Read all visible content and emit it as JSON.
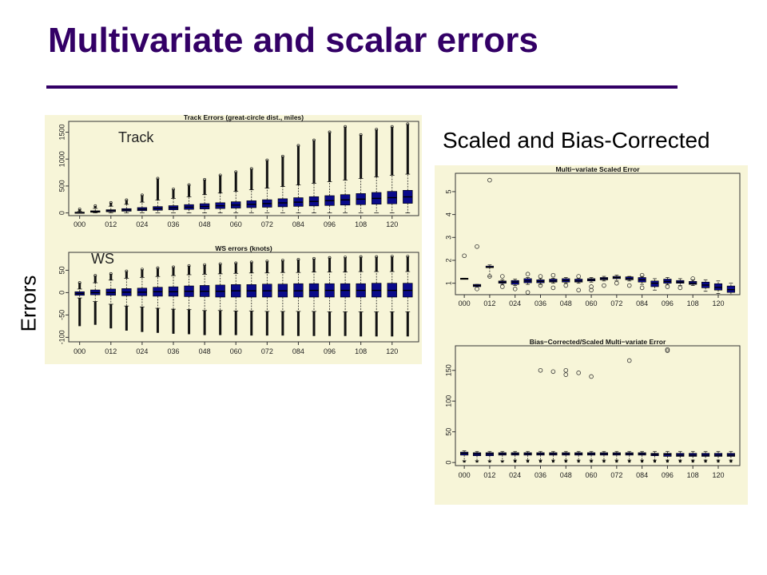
{
  "slide": {
    "title": "Multivariate and scalar errors",
    "side_label": "Errors",
    "right_caption": "Scaled and Bias-Corrected"
  },
  "colors": {
    "title": "#330066",
    "box_fill": "#0a0a8a",
    "panel_bg": "#f7f5d8"
  },
  "chart_data": [
    {
      "type": "box",
      "title": "Track Errors (great-circle dist., miles)",
      "overlay_label": "Track",
      "xtick_labels": [
        "000",
        "012",
        "024",
        "036",
        "048",
        "060",
        "072",
        "084",
        "096",
        "108",
        "120"
      ],
      "yticks": [
        0,
        500,
        1000,
        1500
      ],
      "ylim": [
        -50,
        1700
      ],
      "boxes": [
        {
          "q1": 2,
          "med": 8,
          "q3": 14,
          "wlo": 0,
          "whi": 30,
          "omax": 70
        },
        {
          "q1": 12,
          "med": 24,
          "q3": 40,
          "wlo": 0,
          "whi": 85,
          "omax": 130
        },
        {
          "q1": 22,
          "med": 40,
          "q3": 60,
          "wlo": 0,
          "whi": 125,
          "omax": 190
        },
        {
          "q1": 32,
          "med": 55,
          "q3": 80,
          "wlo": 0,
          "whi": 160,
          "omax": 240
        },
        {
          "q1": 42,
          "med": 68,
          "q3": 100,
          "wlo": 0,
          "whi": 200,
          "omax": 330
        },
        {
          "q1": 50,
          "med": 82,
          "q3": 118,
          "wlo": 0,
          "whi": 240,
          "omax": 640
        },
        {
          "q1": 58,
          "med": 95,
          "q3": 135,
          "wlo": 0,
          "whi": 270,
          "omax": 440
        },
        {
          "q1": 66,
          "med": 108,
          "q3": 155,
          "wlo": 0,
          "whi": 300,
          "omax": 520
        },
        {
          "q1": 74,
          "med": 120,
          "q3": 172,
          "wlo": 0,
          "whi": 340,
          "omax": 620
        },
        {
          "q1": 82,
          "med": 133,
          "q3": 190,
          "wlo": 0,
          "whi": 370,
          "omax": 700
        },
        {
          "q1": 90,
          "med": 146,
          "q3": 208,
          "wlo": 0,
          "whi": 400,
          "omax": 760
        },
        {
          "q1": 98,
          "med": 160,
          "q3": 226,
          "wlo": 0,
          "whi": 430,
          "omax": 820
        },
        {
          "q1": 106,
          "med": 173,
          "q3": 245,
          "wlo": 0,
          "whi": 460,
          "omax": 980
        },
        {
          "q1": 114,
          "med": 187,
          "q3": 264,
          "wlo": 0,
          "whi": 490,
          "omax": 1050
        },
        {
          "q1": 122,
          "med": 200,
          "q3": 283,
          "wlo": 0,
          "whi": 520,
          "omax": 1250
        },
        {
          "q1": 130,
          "med": 214,
          "q3": 302,
          "wlo": 0,
          "whi": 550,
          "omax": 1350
        },
        {
          "q1": 138,
          "med": 228,
          "q3": 321,
          "wlo": 0,
          "whi": 580,
          "omax": 1500
        },
        {
          "q1": 146,
          "med": 242,
          "q3": 340,
          "wlo": 0,
          "whi": 610,
          "omax": 1600
        },
        {
          "q1": 154,
          "med": 256,
          "q3": 360,
          "wlo": 0,
          "whi": 640,
          "omax": 1450
        },
        {
          "q1": 162,
          "med": 270,
          "q3": 380,
          "wlo": 0,
          "whi": 670,
          "omax": 1550
        },
        {
          "q1": 170,
          "med": 284,
          "q3": 400,
          "wlo": 0,
          "whi": 700,
          "omax": 1600
        },
        {
          "q1": 178,
          "med": 298,
          "q3": 420,
          "wlo": 0,
          "whi": 720,
          "omax": 1650
        }
      ]
    },
    {
      "type": "box",
      "title": "WS errors (knots)",
      "overlay_label": "WS",
      "xtick_labels": [
        "000",
        "012",
        "024",
        "036",
        "048",
        "060",
        "072",
        "084",
        "096",
        "108",
        "120"
      ],
      "yticks": [
        -100,
        -50,
        0,
        50
      ],
      "ylim": [
        -110,
        90
      ],
      "boxes": [
        {
          "q1": -6,
          "med": -2,
          "q3": 2,
          "wlo": -12,
          "whi": 8,
          "omin": -75,
          "omax": 22
        },
        {
          "q1": -5,
          "med": 0,
          "q3": 6,
          "wlo": -20,
          "whi": 22,
          "omin": -72,
          "omax": 38
        },
        {
          "q1": -6,
          "med": 0,
          "q3": 8,
          "wlo": -26,
          "whi": 28,
          "omin": -80,
          "omax": 42
        },
        {
          "q1": -7,
          "med": 1,
          "q3": 9,
          "wlo": -30,
          "whi": 32,
          "omin": -85,
          "omax": 48
        },
        {
          "q1": -7,
          "med": 1,
          "q3": 10,
          "wlo": -32,
          "whi": 34,
          "omin": -88,
          "omax": 52
        },
        {
          "q1": -8,
          "med": 2,
          "q3": 12,
          "wlo": -35,
          "whi": 36,
          "omin": -90,
          "omax": 55
        },
        {
          "q1": -8,
          "med": 2,
          "q3": 13,
          "wlo": -37,
          "whi": 38,
          "omin": -92,
          "omax": 57
        },
        {
          "q1": -9,
          "med": 3,
          "q3": 15,
          "wlo": -38,
          "whi": 40,
          "omin": -93,
          "omax": 60
        },
        {
          "q1": -9,
          "med": 3,
          "q3": 16,
          "wlo": -40,
          "whi": 41,
          "omin": -95,
          "omax": 62
        },
        {
          "q1": -10,
          "med": 3,
          "q3": 17,
          "wlo": -40,
          "whi": 42,
          "omin": -95,
          "omax": 64
        },
        {
          "q1": -10,
          "med": 4,
          "q3": 18,
          "wlo": -41,
          "whi": 43,
          "omin": -95,
          "omax": 66
        },
        {
          "q1": -10,
          "med": 4,
          "q3": 18,
          "wlo": -41,
          "whi": 44,
          "omin": -96,
          "omax": 68
        },
        {
          "q1": -10,
          "med": 4,
          "q3": 19,
          "wlo": -42,
          "whi": 44,
          "omin": -96,
          "omax": 70
        },
        {
          "q1": -10,
          "med": 4,
          "q3": 19,
          "wlo": -42,
          "whi": 45,
          "omin": -96,
          "omax": 72
        },
        {
          "q1": -10,
          "med": 4,
          "q3": 20,
          "wlo": -42,
          "whi": 45,
          "omin": -97,
          "omax": 74
        },
        {
          "q1": -10,
          "med": 5,
          "q3": 20,
          "wlo": -42,
          "whi": 46,
          "omin": -97,
          "omax": 76
        },
        {
          "q1": -10,
          "med": 5,
          "q3": 20,
          "wlo": -43,
          "whi": 46,
          "omin": -97,
          "omax": 78
        },
        {
          "q1": -10,
          "med": 5,
          "q3": 20,
          "wlo": -43,
          "whi": 46,
          "omin": -97,
          "omax": 79
        },
        {
          "q1": -10,
          "med": 5,
          "q3": 20,
          "wlo": -43,
          "whi": 47,
          "omin": -98,
          "omax": 80
        },
        {
          "q1": -10,
          "med": 5,
          "q3": 21,
          "wlo": -43,
          "whi": 47,
          "omin": -98,
          "omax": 80
        },
        {
          "q1": -10,
          "med": 5,
          "q3": 21,
          "wlo": -43,
          "whi": 47,
          "omin": -98,
          "omax": 81
        },
        {
          "q1": -10,
          "med": 5,
          "q3": 21,
          "wlo": -43,
          "whi": 47,
          "omin": -98,
          "omax": 81
        }
      ]
    },
    {
      "type": "box",
      "title": "Multi−variate Scaled Error",
      "xtick_labels": [
        "000",
        "012",
        "024",
        "036",
        "048",
        "060",
        "072",
        "084",
        "096",
        "108",
        "120"
      ],
      "yticks": [
        1,
        2,
        3,
        4,
        5
      ],
      "ylim": [
        0.5,
        5.8
      ],
      "boxes": [
        {
          "q1": 1.18,
          "med": 1.2,
          "q3": 1.22,
          "wlo": 1.18,
          "whi": 1.22,
          "outliers": [
            2.2
          ]
        },
        {
          "q1": 0.85,
          "med": 0.9,
          "q3": 0.95,
          "wlo": 0.85,
          "whi": 0.95,
          "outliers": [
            2.6,
            0.75
          ]
        },
        {
          "q1": 1.68,
          "med": 1.7,
          "q3": 1.75,
          "wlo": 1.3,
          "whi": 1.8,
          "outliers": [
            5.5,
            1.3
          ]
        },
        {
          "q1": 1.0,
          "med": 1.05,
          "q3": 1.1,
          "wlo": 0.95,
          "whi": 1.15,
          "outliers": [
            1.3,
            0.85
          ]
        },
        {
          "q1": 0.95,
          "med": 1.05,
          "q3": 1.12,
          "wlo": 0.9,
          "whi": 1.18,
          "outliers": [
            0.75
          ]
        },
        {
          "q1": 1.02,
          "med": 1.1,
          "q3": 1.2,
          "wlo": 0.95,
          "whi": 1.25,
          "outliers": [
            1.4,
            0.6
          ]
        },
        {
          "q1": 1.02,
          "med": 1.08,
          "q3": 1.15,
          "wlo": 0.95,
          "whi": 1.2,
          "outliers": [
            1.3,
            0.9
          ]
        },
        {
          "q1": 1.05,
          "med": 1.1,
          "q3": 1.18,
          "wlo": 1.0,
          "whi": 1.22,
          "outliers": [
            1.35,
            0.8
          ]
        },
        {
          "q1": 1.05,
          "med": 1.12,
          "q3": 1.2,
          "wlo": 1.0,
          "whi": 1.25,
          "outliers": [
            0.9
          ]
        },
        {
          "q1": 1.05,
          "med": 1.1,
          "q3": 1.18,
          "wlo": 1.0,
          "whi": 1.22,
          "outliers": [
            1.3,
            0.7
          ]
        },
        {
          "q1": 1.1,
          "med": 1.15,
          "q3": 1.2,
          "wlo": 1.05,
          "whi": 1.25,
          "outliers": [
            0.85,
            0.7
          ]
        },
        {
          "q1": 1.15,
          "med": 1.2,
          "q3": 1.25,
          "wlo": 1.1,
          "whi": 1.3,
          "outliers": [
            0.9
          ]
        },
        {
          "q1": 1.2,
          "med": 1.25,
          "q3": 1.3,
          "wlo": 1.1,
          "whi": 1.35,
          "outliers": [
            1.0
          ]
        },
        {
          "q1": 1.15,
          "med": 1.2,
          "q3": 1.28,
          "wlo": 1.1,
          "whi": 1.3,
          "outliers": [
            0.9
          ]
        },
        {
          "q1": 1.05,
          "med": 1.15,
          "q3": 1.25,
          "wlo": 0.95,
          "whi": 1.3,
          "outliers": [
            1.35,
            0.8
          ]
        },
        {
          "q1": 0.85,
          "med": 1.0,
          "q3": 1.1,
          "wlo": 0.7,
          "whi": 1.2,
          "outliers": []
        },
        {
          "q1": 1.0,
          "med": 1.08,
          "q3": 1.18,
          "wlo": 0.95,
          "whi": 1.25,
          "outliers": [
            0.85
          ]
        },
        {
          "q1": 1.0,
          "med": 1.05,
          "q3": 1.12,
          "wlo": 0.9,
          "whi": 1.2,
          "outliers": [
            0.8
          ]
        },
        {
          "q1": 0.95,
          "med": 1.0,
          "q3": 1.08,
          "wlo": 0.9,
          "whi": 1.15,
          "outliers": [
            1.2
          ]
        },
        {
          "q1": 0.8,
          "med": 0.92,
          "q3": 1.05,
          "wlo": 0.65,
          "whi": 1.15,
          "outliers": []
        },
        {
          "q1": 0.7,
          "med": 0.82,
          "q3": 0.98,
          "wlo": 0.55,
          "whi": 1.1,
          "outliers": []
        },
        {
          "q1": 0.6,
          "med": 0.72,
          "q3": 0.88,
          "wlo": 0.5,
          "whi": 1.0,
          "outliers": []
        }
      ]
    },
    {
      "type": "box",
      "title": "Bias−Corrected/Scaled Multi−variate Error",
      "xtick_labels": [
        "000",
        "012",
        "024",
        "036",
        "048",
        "060",
        "072",
        "084",
        "096",
        "108",
        "120"
      ],
      "yticks": [
        0,
        50,
        100,
        150
      ],
      "ylim": [
        -5,
        190
      ],
      "boxes": [
        {
          "q1": 12,
          "med": 15,
          "q3": 17,
          "wlo": 3,
          "whi": 19,
          "outliers": [],
          "omin": 0
        },
        {
          "q1": 11,
          "med": 14,
          "q3": 16,
          "wlo": 3,
          "whi": 18,
          "outliers": [],
          "omin": 0
        },
        {
          "q1": 11,
          "med": 14,
          "q3": 16,
          "wlo": 3,
          "whi": 18,
          "outliers": [],
          "omin": 0
        },
        {
          "q1": 12,
          "med": 14,
          "q3": 16,
          "wlo": 3,
          "whi": 18,
          "outliers": [],
          "omin": 0
        },
        {
          "q1": 12,
          "med": 14,
          "q3": 16,
          "wlo": 4,
          "whi": 18,
          "outliers": [],
          "omin": 0
        },
        {
          "q1": 12,
          "med": 14,
          "q3": 16,
          "wlo": 4,
          "whi": 18,
          "outliers": [],
          "omin": 0
        },
        {
          "q1": 12,
          "med": 14,
          "q3": 16,
          "wlo": 4,
          "whi": 18,
          "outliers": [
            150
          ],
          "omin": 0
        },
        {
          "q1": 12,
          "med": 14,
          "q3": 16,
          "wlo": 4,
          "whi": 18,
          "outliers": [
            148
          ],
          "omin": 0
        },
        {
          "q1": 12,
          "med": 14,
          "q3": 16,
          "wlo": 4,
          "whi": 18,
          "outliers": [
            150,
            143
          ],
          "omin": 0
        },
        {
          "q1": 12,
          "med": 14,
          "q3": 16,
          "wlo": 4,
          "whi": 18,
          "outliers": [
            146
          ],
          "omin": 0
        },
        {
          "q1": 12,
          "med": 14,
          "q3": 16,
          "wlo": 4,
          "whi": 18,
          "outliers": [
            140
          ],
          "omin": 0
        },
        {
          "q1": 12,
          "med": 14,
          "q3": 16,
          "wlo": 4,
          "whi": 18,
          "outliers": [],
          "omin": 0
        },
        {
          "q1": 12,
          "med": 14,
          "q3": 16,
          "wlo": 4,
          "whi": 18,
          "outliers": [],
          "omin": 0
        },
        {
          "q1": 12,
          "med": 14,
          "q3": 16,
          "wlo": 4,
          "whi": 18,
          "outliers": [
            166
          ],
          "omin": 0
        },
        {
          "q1": 12,
          "med": 14,
          "q3": 16,
          "wlo": 4,
          "whi": 18,
          "outliers": [],
          "omin": 0
        },
        {
          "q1": 11,
          "med": 13,
          "q3": 15,
          "wlo": 4,
          "whi": 18,
          "outliers": [],
          "omin": 0
        },
        {
          "q1": 10,
          "med": 13,
          "q3": 15,
          "wlo": 4,
          "whi": 18,
          "outliers": [
            184,
            182
          ],
          "omin": 0
        },
        {
          "q1": 10,
          "med": 12,
          "q3": 15,
          "wlo": 4,
          "whi": 18,
          "outliers": [],
          "omin": 0
        },
        {
          "q1": 10,
          "med": 12,
          "q3": 15,
          "wlo": 4,
          "whi": 18,
          "outliers": [],
          "omin": 0
        },
        {
          "q1": 10,
          "med": 12,
          "q3": 15,
          "wlo": 4,
          "whi": 18,
          "outliers": [],
          "omin": 0
        },
        {
          "q1": 10,
          "med": 12,
          "q3": 15,
          "wlo": 4,
          "whi": 18,
          "outliers": [],
          "omin": 0
        },
        {
          "q1": 10,
          "med": 12,
          "q3": 15,
          "wlo": 4,
          "whi": 18,
          "outliers": [],
          "omin": 0
        }
      ]
    }
  ]
}
